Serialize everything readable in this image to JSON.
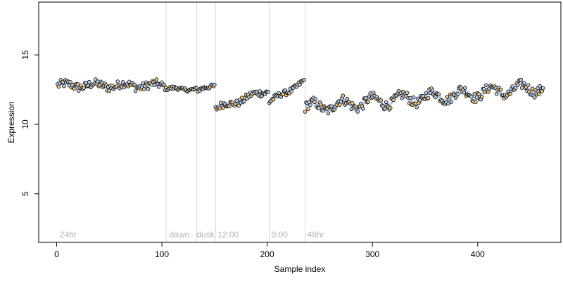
{
  "chart_data": {
    "type": "scatter",
    "title": "",
    "xlabel": "Sample index",
    "ylabel": "Expression",
    "xlim": [
      -17,
      479
    ],
    "ylim": [
      1.5,
      18.8
    ],
    "xticks": [
      0,
      100,
      200,
      300,
      400
    ],
    "yticks": [
      5,
      10,
      15
    ],
    "grid": false,
    "colors": {
      "point_fill": "#b7cde6",
      "point_fill_alt": "#f7c27a",
      "point_stroke": "#000000",
      "smooth_line": "#9eb8dd",
      "smooth_line_alt": "#d9b07a",
      "vline": "#d9d9d9",
      "annotation": "#b3b3b3"
    },
    "vlines": [
      104,
      133,
      151,
      202,
      236
    ],
    "annotations": [
      {
        "x": 3,
        "text": "24hr"
      },
      {
        "x": 107,
        "text": "dawn"
      },
      {
        "x": 133,
        "text": "dusk"
      },
      {
        "x": 153,
        "text": "12:00"
      },
      {
        "x": 204,
        "text": "0:00"
      },
      {
        "x": 238,
        "text": "48hr"
      }
    ],
    "segments": [
      {
        "x0": 1,
        "x1": 103,
        "base": 12.8,
        "slope": 0.0,
        "amp": 0.15,
        "noise": 0.3
      },
      {
        "x0": 104,
        "x1": 133,
        "base": 12.55,
        "slope": 0.0,
        "amp": 0.08,
        "noise": 0.12
      },
      {
        "x0": 134,
        "x1": 150,
        "base": 12.45,
        "slope": 0.02,
        "amp": 0.05,
        "noise": 0.15
      },
      {
        "x0": 151,
        "x1": 201,
        "base": 11.1,
        "slope": 0.027,
        "amp": 0.15,
        "noise": 0.25
      },
      {
        "x0": 202,
        "x1": 235,
        "base": 11.6,
        "slope": 0.045,
        "amp": 0.1,
        "noise": 0.2
      },
      {
        "x0": 236,
        "x1": 462,
        "base": 11.2,
        "slope": 0.0065,
        "amp": 0.35,
        "noise": 0.35
      }
    ]
  }
}
